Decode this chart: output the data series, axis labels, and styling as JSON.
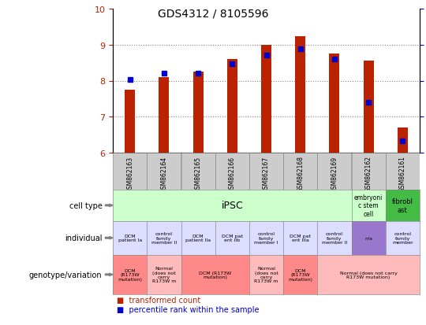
{
  "title": "GDS4312 / 8105596",
  "samples": [
    "GSM862163",
    "GSM862164",
    "GSM862165",
    "GSM862166",
    "GSM862167",
    "GSM862168",
    "GSM862169",
    "GSM862162",
    "GSM862161"
  ],
  "transformed_count": [
    7.75,
    8.1,
    8.25,
    8.6,
    9.0,
    9.25,
    8.75,
    8.55,
    6.7
  ],
  "percentile_rank": [
    51,
    55,
    55,
    62,
    68,
    72,
    65,
    35,
    8
  ],
  "ylim": [
    6,
    10
  ],
  "y2lim": [
    0,
    100
  ],
  "yticks": [
    6,
    7,
    8,
    9,
    10
  ],
  "y2ticks": [
    0,
    25,
    50,
    75,
    100
  ],
  "bar_color": "#bb2200",
  "dot_color": "#0000cc",
  "bar_bottom": 6,
  "cell_type_row": {
    "iPSC_span": [
      0,
      7
    ],
    "embryonic_span": [
      7,
      8
    ],
    "fibroblast_span": [
      8,
      9
    ],
    "iPSC_color": "#ccffcc",
    "embryonic_color": "#ccffcc",
    "fibroblast_color": "#44bb44",
    "iPSC_label": "iPSC",
    "embryonic_label": "embryoni\nc stem\ncell",
    "fibroblast_label": "fibrobl\nast"
  },
  "individual_colors": [
    "#ddddff",
    "#ddddff",
    "#ddddff",
    "#ddddff",
    "#ddddff",
    "#ddddff",
    "#ddddff",
    "#9977cc",
    "#ddddff"
  ],
  "individual_labels": [
    "DCM\npatient Ia",
    "control\nfamily\nmember II",
    "DCM\npatient IIa",
    "DCM pat\nent IIb",
    "control\nfamily\nmember I",
    "DCM pat\nent IIIa",
    "control\nfamily\nmember II",
    "n/a",
    "control\nfamily\nmember"
  ],
  "genotype_spans": [
    {
      "start": 0,
      "end": 1,
      "label": "DCM\n(R173W\nmutation)",
      "color": "#ff8888"
    },
    {
      "start": 1,
      "end": 2,
      "label": "Normal\n(does not\ncarry\nR173W m",
      "color": "#ffbbbb"
    },
    {
      "start": 2,
      "end": 4,
      "label": "DCM (R173W\nmutation)",
      "color": "#ff8888"
    },
    {
      "start": 4,
      "end": 5,
      "label": "Normal\n(does not\ncarry\nR173W m",
      "color": "#ffbbbb"
    },
    {
      "start": 5,
      "end": 6,
      "label": "DCM\n(R173W\nmutation)",
      "color": "#ff8888"
    },
    {
      "start": 6,
      "end": 9,
      "label": "Normal (does not carry\nR173W mutation)",
      "color": "#ffbbbb"
    }
  ],
  "row_labels": [
    "cell type",
    "individual",
    "genotype/variation"
  ],
  "legend_bar_label": "transformed count",
  "legend_dot_label": "percentile rank within the sample",
  "background_color": "#ffffff",
  "grid_color": "#888888",
  "xlabel_bg": "#cccccc",
  "xlabel_border": "#888888"
}
